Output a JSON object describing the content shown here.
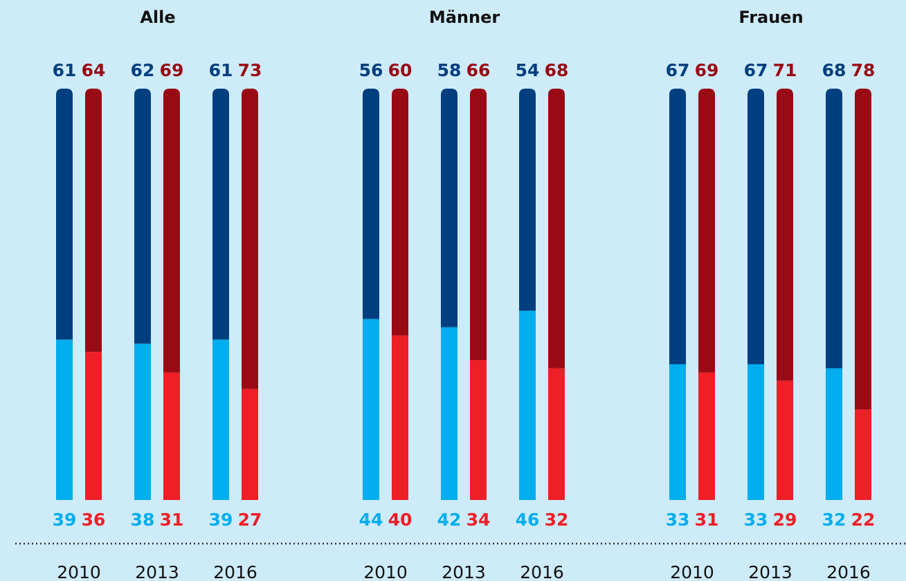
{
  "chart_data": [
    {
      "type": "bar",
      "title": "Alle",
      "categories": [
        "2010",
        "2013",
        "2016"
      ],
      "ylim": [
        0,
        100
      ],
      "groups": [
        {
          "series": [
            {
              "color": "#00aeef",
              "values": [
                39,
                38,
                39
              ]
            },
            {
              "color": "#003f7f",
              "values": [
                61,
                62,
                61
              ]
            }
          ]
        },
        {
          "series": [
            {
              "color": "#ee1f27",
              "values": [
                36,
                31,
                27
              ]
            },
            {
              "color": "#9a0a14",
              "values": [
                64,
                69,
                73
              ]
            }
          ]
        }
      ]
    },
    {
      "type": "bar",
      "title": "Männer",
      "categories": [
        "2010",
        "2013",
        "2016"
      ],
      "ylim": [
        0,
        100
      ],
      "groups": [
        {
          "series": [
            {
              "color": "#00aeef",
              "values": [
                44,
                42,
                46
              ]
            },
            {
              "color": "#003f7f",
              "values": [
                56,
                58,
                54
              ]
            }
          ]
        },
        {
          "series": [
            {
              "color": "#ee1f27",
              "values": [
                40,
                34,
                32
              ]
            },
            {
              "color": "#9a0a14",
              "values": [
                60,
                66,
                68
              ]
            }
          ]
        }
      ]
    },
    {
      "type": "bar",
      "title": "Frauen",
      "categories": [
        "2010",
        "2013",
        "2016"
      ],
      "ylim": [
        0,
        100
      ],
      "groups": [
        {
          "series": [
            {
              "color": "#00aeef",
              "values": [
                33,
                33,
                32
              ]
            },
            {
              "color": "#003f7f",
              "values": [
                67,
                67,
                68
              ]
            }
          ]
        },
        {
          "series": [
            {
              "color": "#ee1f27",
              "values": [
                31,
                29,
                22
              ]
            },
            {
              "color": "#9a0a14",
              "values": [
                69,
                71,
                78
              ]
            }
          ]
        }
      ]
    }
  ]
}
